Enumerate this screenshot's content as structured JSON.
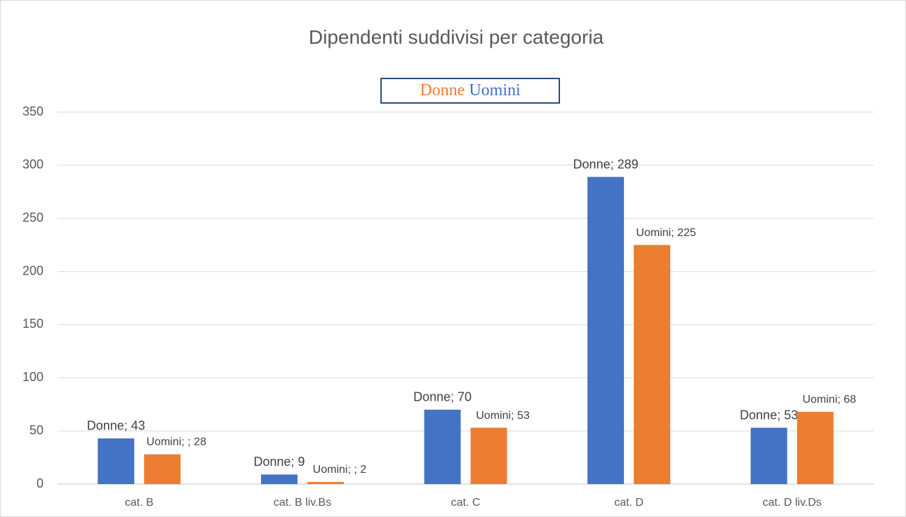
{
  "chart_data": {
    "type": "bar",
    "title": "Dipendenti suddivisi per categoria",
    "categories": [
      "cat. B",
      "cat. B liv.Bs",
      "cat. C",
      "cat. D",
      "cat. D liv.Ds"
    ],
    "series": [
      {
        "name": "Donne",
        "color": "#4472c4",
        "legend_color": "#ed7d31",
        "values": [
          43,
          9,
          70,
          289,
          53
        ],
        "value_labels": [
          "Donne; 43",
          "Donne; 9",
          "Donne; 70",
          "Donne; 289",
          "Donne; 53"
        ]
      },
      {
        "name": "Uomini",
        "color": "#ed7d31",
        "legend_color": "#4472c4",
        "values": [
          28,
          2,
          53,
          225,
          68
        ],
        "value_labels": [
          "Uomini; ; 28",
          "Uomini; ; 2",
          "Uomini; 53",
          "Uomini; 225",
          "Uomini; 68"
        ]
      }
    ],
    "ylim": [
      0,
      350
    ],
    "yticks": [
      0,
      50,
      100,
      150,
      200,
      250,
      300,
      350
    ],
    "grid": true
  }
}
